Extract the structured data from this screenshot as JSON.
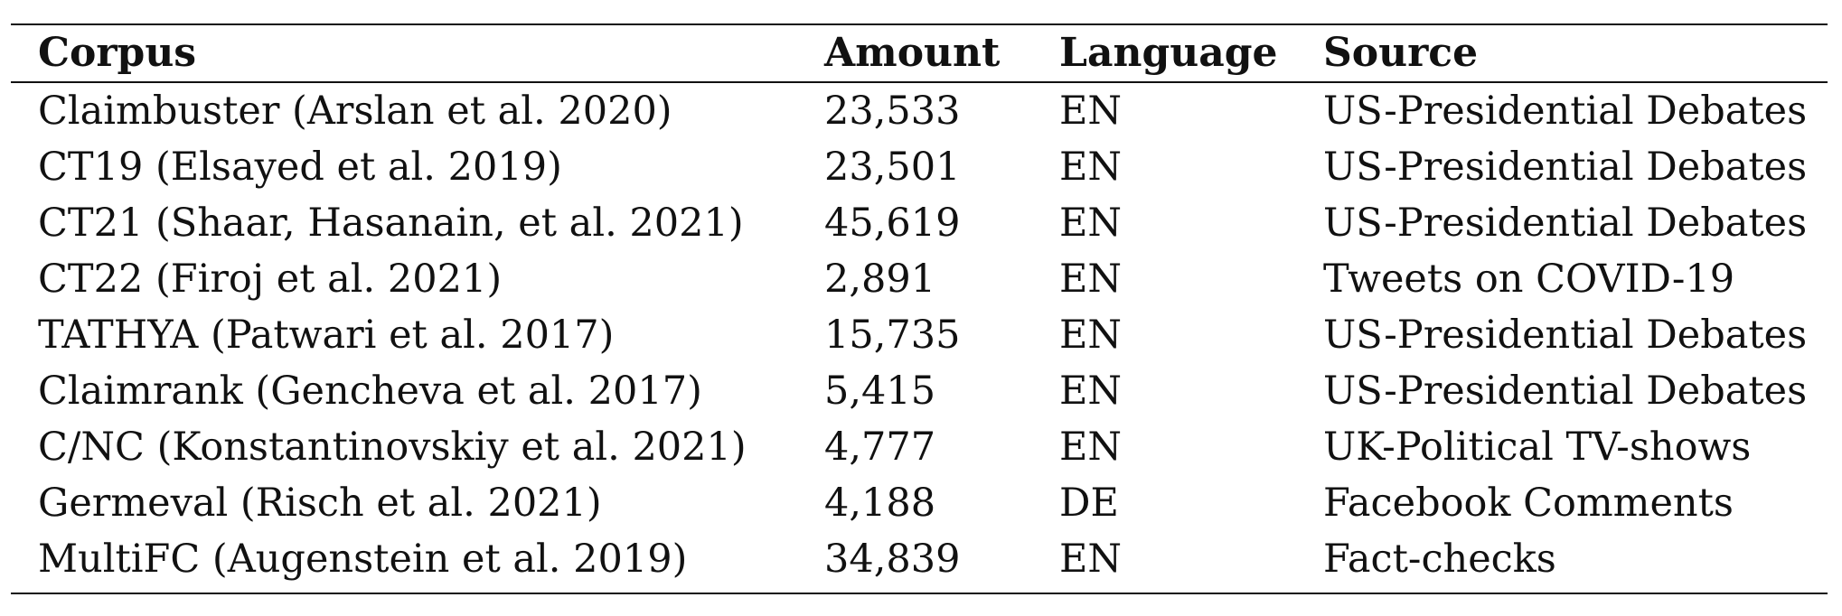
{
  "table": {
    "headers": {
      "corpus": "Corpus",
      "amount": "Amount",
      "language": "Language",
      "source": "Source"
    },
    "rows": [
      {
        "corpus": "Claimbuster (Arslan et al. 2020)",
        "amount": "23,533",
        "language": "EN",
        "source": "US-Presidential Debates"
      },
      {
        "corpus": "CT19 (Elsayed et al. 2019)",
        "amount": "23,501",
        "language": "EN",
        "source": "US-Presidential Debates"
      },
      {
        "corpus": "CT21 (Shaar, Hasanain, et al. 2021)",
        "amount": "45,619",
        "language": "EN",
        "source": "US-Presidential Debates"
      },
      {
        "corpus": "CT22 (Firoj et al. 2021)",
        "amount": "2,891",
        "language": "EN",
        "source": "Tweets on COVID-19"
      },
      {
        "corpus": "TATHYA (Patwari et al. 2017)",
        "amount": "15,735",
        "language": "EN",
        "source": "US-Presidential Debates"
      },
      {
        "corpus": "Claimrank (Gencheva et al. 2017)",
        "amount": "5,415",
        "language": "EN",
        "source": "US-Presidential Debates"
      },
      {
        "corpus": "C/NC (Konstantinovskiy et al. 2021)",
        "amount": "4,777",
        "language": "EN",
        "source": "UK-Political TV-shows"
      },
      {
        "corpus": "Germeval (Risch et al. 2021)",
        "amount": "4,188",
        "language": "DE",
        "source": "Facebook Comments"
      },
      {
        "corpus": "MultiFC (Augenstein et al. 2019)",
        "amount": "34,839",
        "language": "EN",
        "source": "Fact-checks"
      }
    ]
  }
}
